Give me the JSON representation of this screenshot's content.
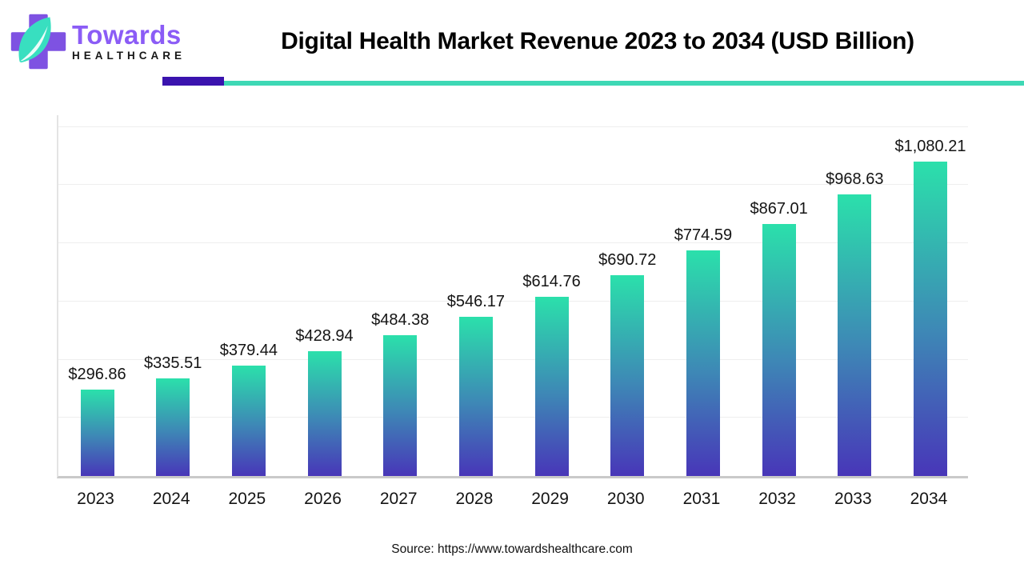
{
  "header": {
    "brand_name": "Towards",
    "brand_subtitle": "HEALTHCARE",
    "title": "Digital Health Market Revenue 2023 to 2034 (USD Billion)"
  },
  "colors": {
    "divider_purple": "#3A13AE",
    "divider_teal": "#3ED8B5",
    "brand_purple": "#8B5CF6",
    "logo_cross_purple": "#7E52E2",
    "logo_leaf_teal": "#38DFC0",
    "bar_gradient_top": "#2BE0AB",
    "bar_gradient_mid": "#3E86B6",
    "bar_gradient_bottom": "#4836B8"
  },
  "chart_data": {
    "type": "bar",
    "title": "Digital Health Market Revenue 2023 to 2034 (USD Billion)",
    "unit": "USD Billion",
    "categories": [
      "2023",
      "2024",
      "2025",
      "2026",
      "2027",
      "2028",
      "2029",
      "2030",
      "2031",
      "2032",
      "2033",
      "2034"
    ],
    "values": [
      296.86,
      335.51,
      379.44,
      428.94,
      484.38,
      546.17,
      614.76,
      690.72,
      774.59,
      867.01,
      968.63,
      1080.21
    ],
    "value_labels": [
      "$296.86",
      "$335.51",
      "$379.44",
      "$428.94",
      "$484.38",
      "$546.17",
      "$614.76",
      "$690.72",
      "$774.59",
      "$867.01",
      "$968.63",
      "$1,080.21"
    ],
    "xlabel": "",
    "ylabel": "",
    "ylim": [
      0,
      1240
    ],
    "grid": true,
    "grid_step": 200,
    "grid_max": 1200,
    "legend": "none"
  },
  "footer": {
    "source": "Source: https://www.towardshealthcare.com"
  }
}
